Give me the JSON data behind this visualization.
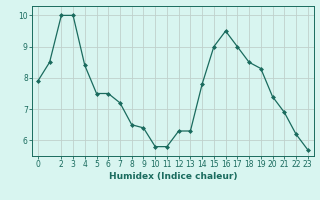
{
  "x_values": [
    0,
    1,
    2,
    3,
    4,
    5,
    6,
    7,
    8,
    9,
    10,
    11,
    12,
    13,
    14,
    15,
    16,
    17,
    18,
    19,
    20,
    21,
    22,
    23
  ],
  "y_values": [
    7.9,
    8.5,
    10.0,
    10.0,
    8.4,
    7.5,
    7.5,
    7.2,
    6.5,
    6.4,
    5.8,
    5.8,
    6.3,
    6.3,
    7.8,
    9.0,
    9.5,
    9.0,
    8.5,
    8.3,
    7.4,
    6.9,
    6.2,
    5.7
  ],
  "line_color": "#1a6b5e",
  "marker": "D",
  "marker_size": 2.0,
  "bg_color": "#d8f5f0",
  "grid_color": "#c0d0cc",
  "xlabel": "Humidex (Indice chaleur)",
  "xlim_min": -0.5,
  "xlim_max": 23.5,
  "ylim_min": 5.5,
  "ylim_max": 10.3,
  "yticks": [
    6,
    7,
    8,
    9,
    10
  ],
  "xticks": [
    0,
    2,
    3,
    4,
    5,
    6,
    7,
    8,
    9,
    10,
    11,
    12,
    13,
    14,
    15,
    16,
    17,
    18,
    19,
    20,
    21,
    22,
    23
  ],
  "tick_fontsize": 5.5,
  "xlabel_fontsize": 6.5,
  "line_width": 0.9
}
